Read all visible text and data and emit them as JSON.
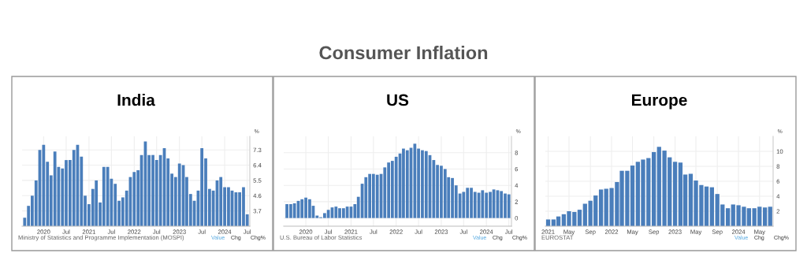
{
  "chart_data": [
    {
      "type": "bar",
      "title": "India",
      "ylabel": "%",
      "color": "#4a7ebb",
      "grid": true,
      "x": [
        "2019-08",
        "2019-09",
        "2019-10",
        "2019-11",
        "2019-12",
        "2020-01",
        "2020-02",
        "2020-03",
        "2020-04",
        "2020-05",
        "2020-06",
        "2020-07",
        "2020-08",
        "2020-09",
        "2020-10",
        "2020-11",
        "2020-12",
        "2021-01",
        "2021-02",
        "2021-03",
        "2021-04",
        "2021-05",
        "2021-06",
        "2021-07",
        "2021-08",
        "2021-09",
        "2021-10",
        "2021-11",
        "2021-12",
        "2022-01",
        "2022-02",
        "2022-03",
        "2022-04",
        "2022-05",
        "2022-06",
        "2022-07",
        "2022-08",
        "2022-09",
        "2022-10",
        "2022-11",
        "2022-12",
        "2023-01",
        "2023-02",
        "2023-03",
        "2023-04",
        "2023-05",
        "2023-06",
        "2023-07",
        "2023-08",
        "2023-09",
        "2023-10",
        "2023-11",
        "2023-12",
        "2024-01",
        "2024-02",
        "2024-03",
        "2024-04",
        "2024-05",
        "2024-06",
        "2024-07"
      ],
      "values": [
        3.3,
        4.0,
        4.6,
        5.5,
        7.3,
        7.6,
        6.6,
        5.8,
        7.2,
        6.3,
        6.2,
        6.7,
        6.7,
        7.3,
        7.6,
        6.9,
        4.6,
        4.1,
        5.0,
        5.5,
        4.2,
        6.3,
        6.3,
        5.6,
        5.3,
        4.3,
        4.5,
        4.9,
        5.7,
        6.0,
        6.1,
        7.0,
        7.8,
        7.0,
        7.0,
        6.7,
        7.0,
        7.4,
        6.8,
        5.9,
        5.7,
        6.5,
        6.4,
        5.7,
        4.7,
        4.3,
        4.9,
        7.4,
        6.8,
        5.0,
        4.9,
        5.5,
        5.7,
        5.1,
        5.1,
        4.9,
        4.8,
        4.8,
        5.1,
        3.5
      ],
      "xlim": [
        "2019-07-11",
        "2024-07-22"
      ],
      "xticks": [
        {
          "value": "2020-01",
          "label": "2020"
        },
        {
          "value": "2020-07",
          "label": "Jul"
        },
        {
          "value": "2021-01",
          "label": "2021"
        },
        {
          "value": "2021-07",
          "label": "Jul"
        },
        {
          "value": "2022-01",
          "label": "2022"
        },
        {
          "value": "2022-07",
          "label": "Jul"
        },
        {
          "value": "2023-01",
          "label": "2023"
        },
        {
          "value": "2023-07",
          "label": "Jul"
        },
        {
          "value": "2024-01",
          "label": "2024"
        },
        {
          "value": "2024-07",
          "label": "Jul"
        }
      ],
      "ylim": [
        2.8,
        8.1
      ],
      "yticks": [
        3.7,
        4.6,
        5.5,
        6.4,
        7.3
      ],
      "annotations": [
        "Consumer Inflation",
        "Ministry of Statistics and Programme Implementation (MOSPI)",
        "Value",
        "Chg",
        "Chg%"
      ]
    },
    {
      "type": "bar",
      "title": "US",
      "ylabel": "%",
      "color": "#4a7ebb",
      "grid": true,
      "x": [
        "2019-08",
        "2019-09",
        "2019-10",
        "2019-11",
        "2019-12",
        "2020-01",
        "2020-02",
        "2020-03",
        "2020-04",
        "2020-05",
        "2020-06",
        "2020-07",
        "2020-08",
        "2020-09",
        "2020-10",
        "2020-11",
        "2020-12",
        "2021-01",
        "2021-02",
        "2021-03",
        "2021-04",
        "2021-05",
        "2021-06",
        "2021-07",
        "2021-08",
        "2021-09",
        "2021-10",
        "2021-11",
        "2021-12",
        "2022-01",
        "2022-02",
        "2022-03",
        "2022-04",
        "2022-05",
        "2022-06",
        "2022-07",
        "2022-08",
        "2022-09",
        "2022-10",
        "2022-11",
        "2022-12",
        "2023-01",
        "2023-02",
        "2023-03",
        "2023-04",
        "2023-05",
        "2023-06",
        "2023-07",
        "2023-08",
        "2023-09",
        "2023-10",
        "2023-11",
        "2023-12",
        "2024-01",
        "2024-02",
        "2024-03",
        "2024-04",
        "2024-05",
        "2024-06",
        "2024-07"
      ],
      "values": [
        1.7,
        1.7,
        1.8,
        2.1,
        2.3,
        2.5,
        2.3,
        1.5,
        0.3,
        0.1,
        0.6,
        1.0,
        1.3,
        1.4,
        1.2,
        1.2,
        1.4,
        1.4,
        1.7,
        2.6,
        4.2,
        5.0,
        5.4,
        5.4,
        5.3,
        5.4,
        6.2,
        6.8,
        7.0,
        7.5,
        7.9,
        8.5,
        8.3,
        8.6,
        9.1,
        8.5,
        8.3,
        8.2,
        7.7,
        7.1,
        6.5,
        6.4,
        6.0,
        5.0,
        4.9,
        4.0,
        3.0,
        3.2,
        3.7,
        3.7,
        3.2,
        3.1,
        3.4,
        3.1,
        3.2,
        3.5,
        3.4,
        3.3,
        3.0,
        2.9
      ],
      "xlim": [
        "2019-07-06",
        "2024-07-22"
      ],
      "xticks": [
        {
          "value": "2020-01",
          "label": "2020"
        },
        {
          "value": "2020-07",
          "label": "Jul"
        },
        {
          "value": "2021-01",
          "label": "2021"
        },
        {
          "value": "2021-07",
          "label": "Jul"
        },
        {
          "value": "2022-01",
          "label": "2022"
        },
        {
          "value": "2022-07",
          "label": "Jul"
        },
        {
          "value": "2023-01",
          "label": "2023"
        },
        {
          "value": "2023-07",
          "label": "Jul"
        },
        {
          "value": "2024-01",
          "label": "2024"
        },
        {
          "value": "2024-07",
          "label": "Jul"
        }
      ],
      "ylim": [
        -1,
        10
      ],
      "yticks": [
        0,
        2,
        4,
        6,
        8
      ],
      "annotations": [
        "U.S. Bureau of Labor Statistics",
        "Value",
        "Chg",
        "Chg%"
      ]
    },
    {
      "type": "bar",
      "title": "Europe",
      "ylabel": "%",
      "color": "#4a7ebb",
      "grid": true,
      "x": [
        "2021-01",
        "2021-02",
        "2021-03",
        "2021-04",
        "2021-05",
        "2021-06",
        "2021-07",
        "2021-08",
        "2021-09",
        "2021-10",
        "2021-11",
        "2021-12",
        "2022-01",
        "2022-02",
        "2022-03",
        "2022-04",
        "2022-05",
        "2022-06",
        "2022-07",
        "2022-08",
        "2022-09",
        "2022-10",
        "2022-11",
        "2022-12",
        "2023-01",
        "2023-02",
        "2023-03",
        "2023-04",
        "2023-05",
        "2023-06",
        "2023-07",
        "2023-08",
        "2023-09",
        "2023-10",
        "2023-11",
        "2023-12",
        "2024-01",
        "2024-02",
        "2024-03",
        "2024-04",
        "2024-05",
        "2024-06",
        "2024-07"
      ],
      "values": [
        0.9,
        0.9,
        1.3,
        1.6,
        2.0,
        1.9,
        2.2,
        3.0,
        3.4,
        4.1,
        4.9,
        5.0,
        5.1,
        5.9,
        7.4,
        7.4,
        8.1,
        8.6,
        8.9,
        9.1,
        9.9,
        10.6,
        10.1,
        9.2,
        8.6,
        8.5,
        6.9,
        7.0,
        6.1,
        5.5,
        5.3,
        5.2,
        4.3,
        2.9,
        2.4,
        2.9,
        2.8,
        2.6,
        2.4,
        2.4,
        2.6,
        2.5,
        2.6
      ],
      "xlim": [
        "2020-12-16",
        "2024-07-18"
      ],
      "xticks": [
        {
          "value": "2021-01",
          "label": "2021"
        },
        {
          "value": "2021-05",
          "label": "May"
        },
        {
          "value": "2021-09",
          "label": "Sep"
        },
        {
          "value": "2022-01",
          "label": "2022"
        },
        {
          "value": "2022-05",
          "label": "May"
        },
        {
          "value": "2022-09",
          "label": "Sep"
        },
        {
          "value": "2023-01",
          "label": "2023"
        },
        {
          "value": "2023-05",
          "label": "May"
        },
        {
          "value": "2023-09",
          "label": "Sep"
        },
        {
          "value": "2024-01",
          "label": "2024"
        },
        {
          "value": "2024-05",
          "label": "May"
        }
      ],
      "ylim": [
        0,
        12
      ],
      "yticks": [
        2,
        4,
        6,
        8,
        10
      ],
      "annotations": [
        "EUROSTAT",
        "Value",
        "Chg",
        "Chg%"
      ]
    }
  ]
}
